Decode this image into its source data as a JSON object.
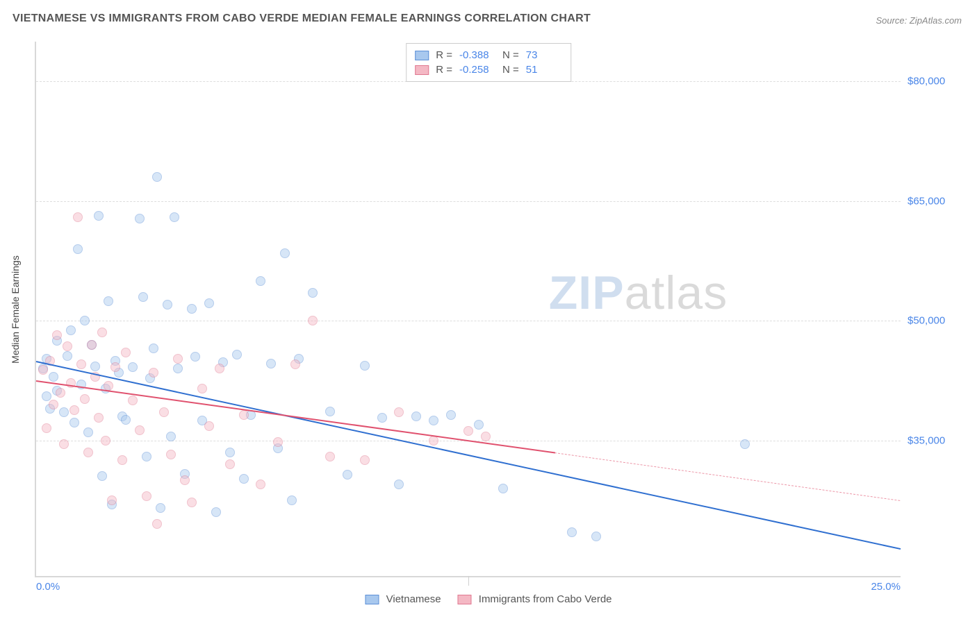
{
  "title": "VIETNAMESE VS IMMIGRANTS FROM CABO VERDE MEDIAN FEMALE EARNINGS CORRELATION CHART",
  "source_label": "Source: ZipAtlas.com",
  "ylabel": "Median Female Earnings",
  "watermark": {
    "part1": "ZIP",
    "part2": "atlas"
  },
  "chart": {
    "type": "scatter",
    "background_color": "#ffffff",
    "grid_color": "#dddddd",
    "axis_color": "#d8d8d8",
    "tick_color": "#4a86e8",
    "xlim": [
      0,
      25
    ],
    "ylim": [
      18000,
      85000
    ],
    "xticks": [
      {
        "value": 0,
        "label": "0.0%"
      },
      {
        "value": 25,
        "label": "25.0%"
      }
    ],
    "xminor_ticks": [
      12.5
    ],
    "yticks": [
      {
        "value": 35000,
        "label": "$35,000"
      },
      {
        "value": 50000,
        "label": "$50,000"
      },
      {
        "value": 65000,
        "label": "$65,000"
      },
      {
        "value": 80000,
        "label": "$80,000"
      }
    ],
    "point_radius": 7,
    "point_opacity": 0.45,
    "line_width": 2.2,
    "series": [
      {
        "name": "Vietnamese",
        "color_fill": "#a8c8ee",
        "color_stroke": "#5b8fd6",
        "line_color": "#2f6fd0",
        "R": "-0.388",
        "N": "73",
        "trend": {
          "x1": 0,
          "y1": 45000,
          "x2": 25,
          "y2": 21500,
          "dash": false
        },
        "points": [
          [
            0.2,
            44000
          ],
          [
            0.3,
            40500
          ],
          [
            0.3,
            45200
          ],
          [
            0.4,
            39000
          ],
          [
            0.5,
            43000
          ],
          [
            0.6,
            47500
          ],
          [
            0.6,
            41200
          ],
          [
            0.8,
            38500
          ],
          [
            0.9,
            45600
          ],
          [
            1.0,
            48800
          ],
          [
            1.1,
            37200
          ],
          [
            1.2,
            59000
          ],
          [
            1.3,
            42000
          ],
          [
            1.4,
            50000
          ],
          [
            1.5,
            36000
          ],
          [
            1.6,
            47000
          ],
          [
            1.7,
            44300
          ],
          [
            1.8,
            63200
          ],
          [
            1.9,
            30500
          ],
          [
            2.0,
            41500
          ],
          [
            2.1,
            52500
          ],
          [
            2.2,
            27000
          ],
          [
            2.3,
            45000
          ],
          [
            2.4,
            43500
          ],
          [
            2.5,
            38000
          ],
          [
            2.6,
            37600
          ],
          [
            2.8,
            44200
          ],
          [
            3.0,
            62800
          ],
          [
            3.1,
            53000
          ],
          [
            3.2,
            33000
          ],
          [
            3.3,
            42800
          ],
          [
            3.4,
            46500
          ],
          [
            3.5,
            68000
          ],
          [
            3.6,
            26500
          ],
          [
            3.8,
            52000
          ],
          [
            3.9,
            35500
          ],
          [
            4.0,
            63000
          ],
          [
            4.1,
            44000
          ],
          [
            4.3,
            30800
          ],
          [
            4.5,
            51500
          ],
          [
            4.6,
            45500
          ],
          [
            4.8,
            37500
          ],
          [
            5.0,
            52200
          ],
          [
            5.2,
            26000
          ],
          [
            5.4,
            44800
          ],
          [
            5.6,
            33500
          ],
          [
            5.8,
            45800
          ],
          [
            6.0,
            30200
          ],
          [
            6.2,
            38200
          ],
          [
            6.5,
            55000
          ],
          [
            6.8,
            44600
          ],
          [
            7.0,
            34000
          ],
          [
            7.2,
            58500
          ],
          [
            7.4,
            27500
          ],
          [
            7.6,
            45200
          ],
          [
            8.0,
            53500
          ],
          [
            8.5,
            38600
          ],
          [
            9.0,
            30700
          ],
          [
            9.5,
            44400
          ],
          [
            10.0,
            37800
          ],
          [
            10.5,
            29500
          ],
          [
            11.0,
            38000
          ],
          [
            11.5,
            37500
          ],
          [
            12.0,
            38200
          ],
          [
            12.8,
            37000
          ],
          [
            13.5,
            29000
          ],
          [
            15.5,
            23500
          ],
          [
            16.2,
            23000
          ],
          [
            20.5,
            34500
          ]
        ]
      },
      {
        "name": "Immigrants from Cabo Verde",
        "color_fill": "#f4b8c4",
        "color_stroke": "#e07890",
        "line_color": "#e0516e",
        "R": "-0.258",
        "N": "51",
        "trend": {
          "x1": 0,
          "y1": 42500,
          "x2": 15,
          "y2": 33500,
          "dash": false
        },
        "trend_ext": {
          "x1": 15,
          "y1": 33500,
          "x2": 25,
          "y2": 27500,
          "dash": true
        },
        "points": [
          [
            0.2,
            43800
          ],
          [
            0.3,
            36500
          ],
          [
            0.4,
            45000
          ],
          [
            0.5,
            39500
          ],
          [
            0.6,
            48200
          ],
          [
            0.7,
            41000
          ],
          [
            0.8,
            34500
          ],
          [
            0.9,
            46800
          ],
          [
            1.0,
            42200
          ],
          [
            1.1,
            38800
          ],
          [
            1.2,
            63000
          ],
          [
            1.3,
            44500
          ],
          [
            1.4,
            40200
          ],
          [
            1.5,
            33500
          ],
          [
            1.6,
            47000
          ],
          [
            1.7,
            43000
          ],
          [
            1.8,
            37800
          ],
          [
            1.9,
            48500
          ],
          [
            2.0,
            35000
          ],
          [
            2.1,
            41800
          ],
          [
            2.2,
            27500
          ],
          [
            2.3,
            44200
          ],
          [
            2.5,
            32500
          ],
          [
            2.6,
            46000
          ],
          [
            2.8,
            40000
          ],
          [
            3.0,
            36300
          ],
          [
            3.2,
            28000
          ],
          [
            3.4,
            43500
          ],
          [
            3.5,
            24500
          ],
          [
            3.7,
            38500
          ],
          [
            3.9,
            33200
          ],
          [
            4.1,
            45200
          ],
          [
            4.3,
            30000
          ],
          [
            4.5,
            27200
          ],
          [
            4.8,
            41500
          ],
          [
            5.0,
            36800
          ],
          [
            5.3,
            44000
          ],
          [
            5.6,
            32000
          ],
          [
            6.0,
            38200
          ],
          [
            6.5,
            29500
          ],
          [
            7.0,
            34800
          ],
          [
            7.5,
            44500
          ],
          [
            8.0,
            50000
          ],
          [
            8.5,
            33000
          ],
          [
            9.5,
            32500
          ],
          [
            10.5,
            38500
          ],
          [
            11.5,
            35000
          ],
          [
            12.5,
            36200
          ],
          [
            13.0,
            35500
          ]
        ]
      }
    ]
  },
  "legend_bottom": [
    {
      "label": "Vietnamese",
      "fill": "#a8c8ee",
      "stroke": "#5b8fd6"
    },
    {
      "label": "Immigrants from Cabo Verde",
      "fill": "#f4b8c4",
      "stroke": "#e07890"
    }
  ]
}
